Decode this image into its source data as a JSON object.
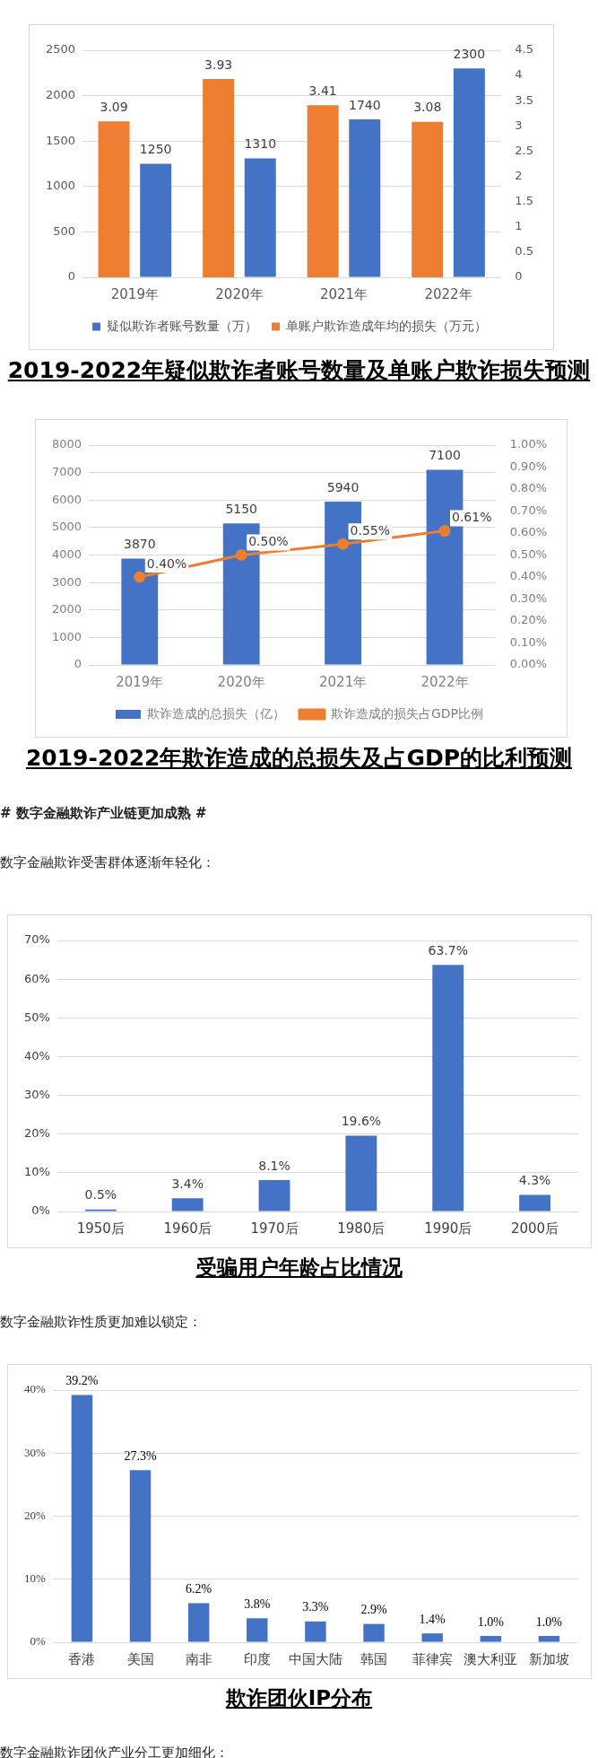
{
  "chart_data": [
    {
      "type": "bar",
      "title": "2019-2022年疑似欺诈者账号数量及单账户欺诈损失预测",
      "categories": [
        "2019年",
        "2020年",
        "2021年",
        "2022年"
      ],
      "series": [
        {
          "name": "疑似欺诈者账号数量（万）",
          "color": "#4472c4",
          "values": [
            1250,
            1310,
            1740,
            2300
          ]
        },
        {
          "name": "单账户欺诈造成年均的损失（万元）",
          "color": "#ed7d31",
          "values": [
            3.09,
            3.93,
            3.41,
            3.08
          ],
          "axis": "y2"
        }
      ],
      "ylim": [
        0,
        2500
      ],
      "yticks": [
        0,
        500,
        1000,
        1500,
        2000,
        2500
      ],
      "y2lim": [
        0,
        4.5
      ],
      "y2ticks": [
        0,
        0.5,
        1,
        1.5,
        2,
        2.5,
        3,
        3.5,
        4,
        4.5
      ],
      "grid": "y",
      "legend": "bottom",
      "data_labels": true
    },
    {
      "type": "bar",
      "title": "2019-2022年欺诈造成的总损失及占GDP的比利预测",
      "categories": [
        "2019年",
        "2020年",
        "2021年",
        "2022年"
      ],
      "series": [
        {
          "name": "欺诈造成的总损失（亿）",
          "color": "#4472c4",
          "values": [
            3870,
            5150,
            5940,
            7100
          ],
          "value_labels": [
            "3870",
            "5150",
            "5940",
            "7100"
          ]
        },
        {
          "name": "欺诈造成的损失占GDP比例",
          "type": "line",
          "color": "#ed7d31",
          "values": [
            0.4,
            0.5,
            0.55,
            0.61
          ],
          "axis": "y2",
          "value_labels": [
            "0.40%",
            "0.50%",
            "0.55%",
            "0.61%"
          ]
        }
      ],
      "ylim": [
        0,
        8000
      ],
      "yticks": [
        0,
        1000,
        2000,
        3000,
        4000,
        5000,
        6000,
        7000,
        8000
      ],
      "y2lim": [
        0,
        1
      ],
      "y2ticks": [
        {
          "value": 0,
          "label": "0.00%"
        },
        {
          "value": 0.1,
          "label": "0.10%"
        },
        {
          "value": 0.2,
          "label": "0.20%"
        },
        {
          "value": 0.3,
          "label": "0.30%"
        },
        {
          "value": 0.4,
          "label": "0.40%"
        },
        {
          "value": 0.5,
          "label": "0.50%"
        },
        {
          "value": 0.6,
          "label": "0.60%"
        },
        {
          "value": 0.7,
          "label": "0.70%"
        },
        {
          "value": 0.8,
          "label": "0.80%"
        },
        {
          "value": 0.9,
          "label": "0.90%"
        },
        {
          "value": 1,
          "label": "1.00%"
        }
      ],
      "grid": "y",
      "legend": "bottom",
      "marker": "circle",
      "line_style": "solid",
      "annotations": [
        "# 数字金融欺诈产业链更加成熟 #",
        "数字金融欺诈受害群体逐渐年轻化："
      ]
    },
    {
      "type": "bar",
      "title": "受骗用户年龄占比情况",
      "categories": [
        "1950后",
        "1960后",
        "1970后",
        "1980后",
        "1990后",
        "2000后"
      ],
      "values": [
        0.5,
        3.4,
        8.1,
        19.6,
        63.7,
        4.3
      ],
      "color": "#4472c4",
      "value_labels": [
        "0.5%",
        "3.4%",
        "8.1%",
        "19.6%",
        "63.7%",
        "4.3%"
      ],
      "ylim": [
        0,
        70
      ],
      "yticks": [
        {
          "value": 0,
          "label": "0%"
        },
        {
          "value": 10,
          "label": "10%"
        },
        {
          "value": 20,
          "label": "20%"
        },
        {
          "value": 30,
          "label": "30%"
        },
        {
          "value": 40,
          "label": "40%"
        },
        {
          "value": 50,
          "label": "50%"
        },
        {
          "value": 60,
          "label": "60%"
        },
        {
          "value": 70,
          "label": "70%"
        }
      ],
      "grid": "y",
      "annotations": [
        "数字金融欺诈性质更加难以锁定："
      ]
    },
    {
      "type": "bar",
      "title": "欺诈团伙IP分布",
      "categories": [
        "香港",
        "美国",
        "南非",
        "印度",
        "中国大陆",
        "韩国",
        "菲律宾",
        "澳大利亚",
        "新加坡"
      ],
      "values": [
        39.2,
        27.3,
        6.2,
        3.8,
        3.3,
        2.9,
        1.4,
        1.0,
        1.0
      ],
      "color": "#4472c4",
      "value_labels": [
        "39.2%",
        "27.3%",
        "6.2%",
        "3.8%",
        "3.3%",
        "2.9%",
        "1.4%",
        "1.0%",
        "1.0%"
      ],
      "ylim": [
        0,
        40
      ],
      "yticks": [
        {
          "value": 0,
          "label": "0%"
        },
        {
          "value": 10,
          "label": "10%"
        },
        {
          "value": 20,
          "label": "20%"
        },
        {
          "value": 30,
          "label": "30%"
        },
        {
          "value": 40,
          "label": "40%"
        }
      ],
      "grid": "y",
      "annotations": [
        "数字金融欺诈团伙产业分工更加细化："
      ]
    }
  ]
}
